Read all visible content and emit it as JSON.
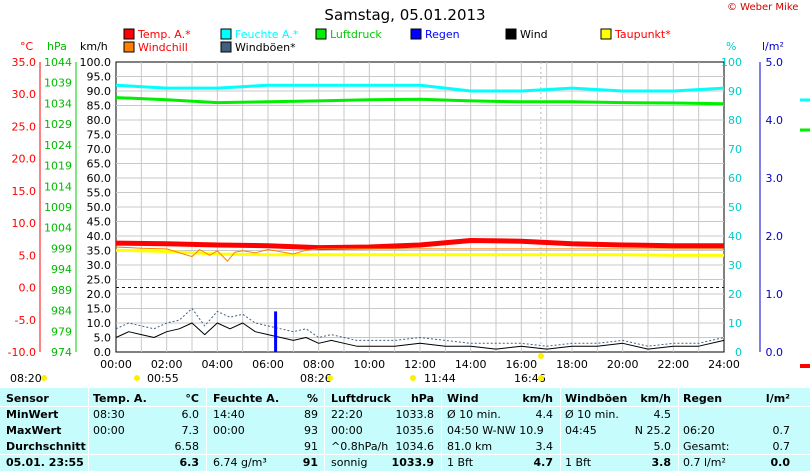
{
  "title": "Samstag, 05.01.2013",
  "copyright": "© Weber Mike",
  "legend": [
    {
      "label": "Temp. A.*",
      "color": "#ff0000",
      "text_color": "#ff0000"
    },
    {
      "label": "Feuchte A.*",
      "color": "#00ffff",
      "text_color": "#00ffff"
    },
    {
      "label": "Luftdruck",
      "color": "#00ee00",
      "text_color": "#00cc00"
    },
    {
      "label": "Regen",
      "color": "#0000ff",
      "text_color": "#0000ff"
    },
    {
      "label": "Wind",
      "color": "#000000",
      "text_color": "#000000"
    },
    {
      "label": "Taupunkt*",
      "color": "#ffff00",
      "text_color": "#ff0000"
    },
    {
      "label": "Windchill",
      "color": "#ff8000",
      "text_color": "#ff0000"
    },
    {
      "label": "Windböen*",
      "color": "#406080",
      "text_color": "#000000"
    }
  ],
  "axis_units": {
    "temp": "°C",
    "pressure": "hPa",
    "wind": "km/h",
    "humidity": "%",
    "rain": "l/m²"
  },
  "temp_ticks": [
    "35.0",
    "30.0",
    "25.0",
    "20.0",
    "15.0",
    "10.0",
    "5.0",
    "0.0",
    "-5.0",
    "-10.0"
  ],
  "pressure_ticks": [
    "1044",
    "1039",
    "1034",
    "1029",
    "1024",
    "1019",
    "1014",
    "1009",
    "1004",
    "999",
    "994",
    "989",
    "984",
    "979",
    "974"
  ],
  "wind_ticks": [
    "100.0",
    "95.0",
    "90.0",
    "85.0",
    "80.0",
    "75.0",
    "70.0",
    "65.0",
    "60.0",
    "55.0",
    "50.0",
    "45.0",
    "40.0",
    "35.0",
    "30.0",
    "25.0",
    "20.0",
    "15.0",
    "10.0",
    "5.0",
    "0.0"
  ],
  "humidity_ticks": [
    "100",
    "90",
    "80",
    "70",
    "60",
    "50",
    "40",
    "30",
    "20",
    "10",
    "0"
  ],
  "rain_ticks": [
    "5.0",
    "4.0",
    "3.0",
    "2.0",
    "1.0",
    "0.0"
  ],
  "time_ticks": [
    "00:00",
    "02:00",
    "04:00",
    "06:00",
    "08:00",
    "10:00",
    "12:00",
    "14:00",
    "16:00",
    "18:00",
    "20:00",
    "22:00",
    "24:00"
  ],
  "time_markers": [
    "08:20",
    "00:55",
    "08:26",
    "11:44",
    "16:46"
  ],
  "chart_data": {
    "type": "line",
    "title": "Samstag, 05.01.2013",
    "x_range": [
      "00:00",
      "24:00"
    ],
    "y_axes": {
      "temp_c": [
        -10,
        35
      ],
      "pressure_hpa": [
        974,
        1044
      ],
      "wind_kmh": [
        0,
        100
      ],
      "humidity_pct": [
        0,
        100
      ],
      "rain_lm2": [
        0,
        5
      ]
    },
    "grid": true,
    "series": [
      {
        "name": "Temp. A.*",
        "axis": "temp_c",
        "x": [
          0,
          2,
          4,
          6,
          8,
          10,
          12,
          14,
          16,
          18,
          20,
          22,
          24
        ],
        "values": [
          6.9,
          6.8,
          6.6,
          6.5,
          6.2,
          6.3,
          6.6,
          7.3,
          7.2,
          6.8,
          6.6,
          6.5,
          6.5
        ]
      },
      {
        "name": "Feuchte A.*",
        "axis": "humidity_pct",
        "x": [
          0,
          2,
          4,
          6,
          8,
          10,
          12,
          14,
          16,
          18,
          20,
          22,
          24
        ],
        "values": [
          92,
          91,
          91,
          92,
          92,
          92,
          92,
          90,
          90,
          91,
          90,
          90,
          91
        ]
      },
      {
        "name": "Luftdruck",
        "axis": "pressure_hpa",
        "x": [
          0,
          2,
          4,
          6,
          8,
          10,
          12,
          14,
          16,
          18,
          20,
          22,
          24
        ],
        "values": [
          1035.4,
          1034.9,
          1034.2,
          1034.4,
          1034.6,
          1034.9,
          1035.0,
          1034.6,
          1034.4,
          1034.4,
          1034.2,
          1034.1,
          1033.9
        ]
      },
      {
        "name": "Taupunkt*",
        "axis": "temp_c",
        "x": [
          0,
          2,
          4,
          6,
          8,
          10,
          12,
          14,
          16,
          18,
          20,
          22,
          24
        ],
        "values": [
          5.8,
          5.6,
          5.2,
          5.1,
          5.1,
          5.1,
          5.1,
          5.1,
          5.1,
          5.1,
          5.1,
          5.0,
          5.0
        ]
      },
      {
        "name": "Windchill",
        "axis": "temp_c",
        "x": [
          0,
          1,
          2,
          3,
          3.3,
          3.7,
          4,
          4.4,
          4.7,
          5,
          5.5,
          6,
          7,
          7.5,
          8,
          24
        ],
        "values": [
          6.3,
          6.1,
          6.0,
          4.8,
          5.9,
          5.0,
          5.7,
          4.1,
          5.5,
          5.7,
          5.4,
          5.9,
          5.2,
          5.8,
          6.0,
          6.0
        ]
      },
      {
        "name": "Wind",
        "axis": "wind_kmh",
        "x": [
          0,
          0.5,
          1,
          1.5,
          2,
          2.5,
          3,
          3.5,
          4,
          4.5,
          5,
          5.5,
          6,
          6.5,
          7,
          7.5,
          8,
          8.5,
          9,
          9.5,
          10,
          11,
          12,
          13,
          14,
          15,
          16,
          17,
          18,
          19,
          20,
          21,
          22,
          23,
          24
        ],
        "values": [
          5,
          7,
          6,
          5,
          7,
          8,
          10,
          6,
          10,
          8,
          10,
          7,
          6,
          5,
          4,
          5,
          3,
          4,
          3,
          2,
          2,
          2,
          3,
          2,
          2,
          1,
          2,
          1,
          2,
          2,
          3,
          1,
          2,
          2,
          4
        ]
      },
      {
        "name": "Windböen*",
        "axis": "wind_kmh",
        "x": [
          0,
          0.5,
          1,
          1.5,
          2,
          2.5,
          3,
          3.5,
          4,
          4.5,
          5,
          5.5,
          6,
          6.5,
          7,
          7.5,
          8,
          8.5,
          9,
          9.5,
          10,
          11,
          12,
          13,
          14,
          15,
          16,
          17,
          18,
          19,
          20,
          21,
          22,
          23,
          24
        ],
        "values": [
          8,
          10,
          9,
          8,
          10,
          11,
          15,
          9,
          14,
          12,
          13,
          10,
          9,
          8,
          7,
          8,
          5,
          6,
          5,
          4,
          4,
          4,
          5,
          4,
          3,
          3,
          3,
          2,
          3,
          3,
          4,
          2,
          3,
          3,
          5
        ]
      },
      {
        "name": "Regen",
        "axis": "rain_lm2",
        "x": [
          6.3
        ],
        "values": [
          0.7
        ]
      }
    ]
  },
  "table": {
    "headers": [
      {
        "name": "Sensor",
        "unit": ""
      },
      {
        "name": "Temp. A.",
        "unit": "°C"
      },
      {
        "name": "Feuchte A.",
        "unit": "%"
      },
      {
        "name": "Luftdruck",
        "unit": "hPa"
      },
      {
        "name": "Wind",
        "unit": "km/h"
      },
      {
        "name": "Windböen",
        "unit": "km/h"
      },
      {
        "name": "Regen",
        "unit": "l/m²"
      }
    ],
    "rows": [
      {
        "label": "MinWert",
        "cells": [
          [
            "08:30",
            "6.0"
          ],
          [
            "14:40",
            "89"
          ],
          [
            "22:20",
            "1033.8"
          ],
          [
            "Ø 10 min.",
            "4.4"
          ],
          [
            "Ø 10 min.",
            "4.5"
          ],
          [
            "",
            ""
          ]
        ]
      },
      {
        "label": "MaxWert",
        "cells": [
          [
            "00:00",
            "7.3"
          ],
          [
            "00:00",
            "93"
          ],
          [
            "00:00",
            "1035.6"
          ],
          [
            "04:50  W-NW 10.9",
            ""
          ],
          [
            "04:45",
            "N 25.2"
          ],
          [
            "06:20",
            "0.7"
          ]
        ]
      },
      {
        "label": "Durchschnitt",
        "cells": [
          [
            "",
            "6.58"
          ],
          [
            "",
            "91"
          ],
          [
            "^0.8hPa/h",
            "1034.6"
          ],
          [
            "81.0 km",
            "3.4"
          ],
          [
            "",
            "5.0"
          ],
          [
            "Gesamt:",
            "0.7"
          ]
        ]
      },
      {
        "label": "05.01. 23:55",
        "cells": [
          [
            "",
            "6.3"
          ],
          [
            "6.74 g/m³",
            "91"
          ],
          [
            "sonnig",
            "1033.9"
          ],
          [
            "1 Bft",
            "4.7"
          ],
          [
            "1 Bft",
            "3.8"
          ],
          [
            "0.7 l/m²",
            "0.0"
          ]
        ]
      }
    ]
  }
}
